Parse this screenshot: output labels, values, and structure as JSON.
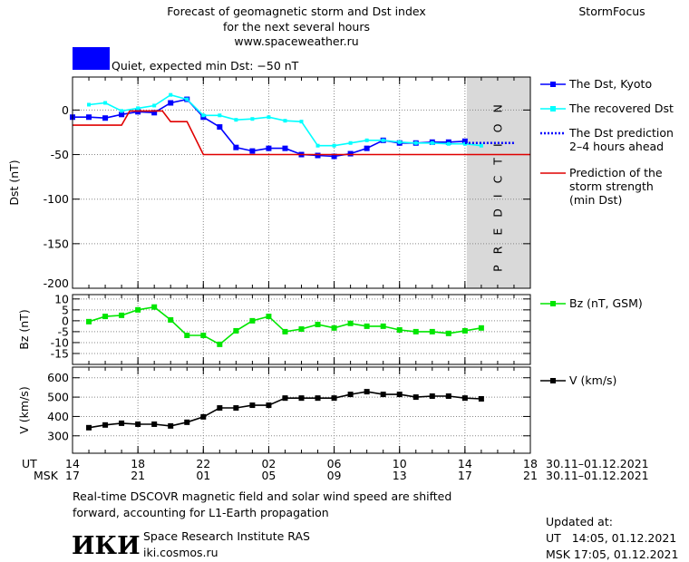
{
  "header": {
    "title_lines": [
      "Forecast of geomagnetic storm and Dst index",
      "for the next several hours",
      "www.spaceweather.ru"
    ],
    "brand": "StormFocus",
    "status": "Quiet, expected min Dst: −50 nT",
    "status_color": "#0000ff"
  },
  "time_axis": {
    "xlim": [
      0,
      28
    ],
    "ut_label": "UT",
    "msk_label": "MSK",
    "date_range": "30.11–01.12.2021",
    "ut_ticks": [
      {
        "value": 0,
        "label": "14"
      },
      {
        "value": 4,
        "label": "18"
      },
      {
        "value": 8,
        "label": "22"
      },
      {
        "value": 12,
        "label": "02"
      },
      {
        "value": 16,
        "label": "06"
      },
      {
        "value": 20,
        "label": "10"
      },
      {
        "value": 24,
        "label": "14"
      },
      {
        "value": 28,
        "label": "18"
      }
    ],
    "msk_ticks": [
      {
        "value": 0,
        "label": "17"
      },
      {
        "value": 4,
        "label": "21"
      },
      {
        "value": 8,
        "label": "01"
      },
      {
        "value": 12,
        "label": "05"
      },
      {
        "value": 16,
        "label": "09"
      },
      {
        "value": 20,
        "label": "13"
      },
      {
        "value": 24,
        "label": "17"
      },
      {
        "value": 28,
        "label": "21"
      }
    ]
  },
  "chart_data": [
    {
      "type": "line",
      "y_label": "Dst (nT)",
      "ylim": [
        -200,
        37
      ],
      "yticks": [
        0,
        -50,
        -100,
        -150,
        -200
      ],
      "grid": true,
      "shaded_region": [
        24,
        28
      ],
      "shaded_label": "PREDICTION",
      "series": [
        {
          "name": "The Dst, Kyoto",
          "color": "#0000ff",
          "marker": "square",
          "x": [
            0,
            1,
            2,
            3,
            4,
            5,
            6,
            7,
            8,
            9,
            10,
            11,
            12,
            13,
            14,
            15,
            16,
            17,
            18,
            19,
            20,
            21,
            22,
            23,
            24
          ],
          "values": [
            -8,
            -8,
            -9,
            -5,
            -2,
            -3,
            8,
            12,
            -8,
            -19,
            -42,
            -46,
            -43,
            -43,
            -50,
            -51,
            -52,
            -49,
            -43,
            -34,
            -37,
            -37,
            -36,
            -36,
            -35
          ]
        },
        {
          "name": "The recovered Dst",
          "color": "#00ffff",
          "marker": "square",
          "x": [
            1,
            2,
            3,
            4,
            5,
            6,
            7,
            8,
            9,
            10,
            11,
            12,
            13,
            14,
            15,
            16,
            17,
            18,
            19,
            20,
            21,
            22,
            23,
            24,
            25
          ],
          "values": [
            6,
            8,
            -1,
            2,
            5,
            17,
            12,
            -6,
            -6,
            -11,
            -10,
            -8,
            -12,
            -13,
            -40,
            -40,
            -37,
            -34,
            -34,
            -36,
            -37,
            -37,
            -38,
            -38,
            -40
          ]
        },
        {
          "name": "The Dst prediction\n2–4 hours ahead",
          "color": "#0000ff",
          "dash": "dotted",
          "x": [
            24,
            27
          ],
          "values": [
            -37,
            -37
          ]
        },
        {
          "name": "Prediction of the\nstorm strength\n(min Dst)",
          "color": "#e00000",
          "x": [
            0,
            3,
            3.5,
            5.5,
            6,
            7,
            8,
            28
          ],
          "values": [
            -17,
            -17,
            -1,
            -1,
            -13,
            -13,
            -50,
            -50
          ]
        }
      ]
    },
    {
      "type": "line",
      "y_label": "Bz (nT)",
      "ylim": [
        -20,
        12
      ],
      "yticks": [
        10,
        5,
        0,
        -5,
        -10,
        -15
      ],
      "grid": true,
      "series": [
        {
          "name": "Bz (nT, GSM)",
          "color": "#00e600",
          "marker": "square",
          "x": [
            1,
            2,
            3,
            4,
            5,
            6,
            7,
            8,
            9,
            10,
            11,
            12,
            13,
            14,
            15,
            16,
            17,
            18,
            19,
            20,
            21,
            22,
            23,
            24,
            25
          ],
          "values": [
            -0.4,
            2,
            2.5,
            5,
            6.3,
            0.4,
            -6.7,
            -6.7,
            -10.8,
            -4.6,
            0,
            2,
            -5,
            -3.8,
            -1.7,
            -3.3,
            -1.2,
            -2.5,
            -2.5,
            -4.2,
            -5,
            -5,
            -5.8,
            -4.6,
            -3.3
          ]
        }
      ]
    },
    {
      "type": "line",
      "y_label": "V (km/s)",
      "ylim": [
        210,
        655
      ],
      "yticks": [
        600,
        500,
        400,
        300
      ],
      "grid": true,
      "series": [
        {
          "name": "V (km/s)",
          "color": "#000000",
          "marker": "square",
          "x": [
            1,
            2,
            3,
            4,
            5,
            6,
            7,
            8,
            9,
            10,
            11,
            12,
            13,
            14,
            15,
            16,
            17,
            18,
            19,
            20,
            21,
            22,
            23,
            24,
            25
          ],
          "values": [
            342,
            356,
            365,
            360,
            360,
            351,
            370,
            398,
            444,
            444,
            458,
            458,
            495,
            495,
            495,
            495,
            514,
            528,
            514,
            514,
            500,
            505,
            505,
            495,
            491
          ]
        }
      ]
    }
  ],
  "footer": {
    "note_lines": [
      "Real-time DSCOVR magnetic field and solar wind speed are shifted",
      "forward, accounting for L1-Earth propagation"
    ],
    "logo": "ИКИ",
    "institute": "Space Research Institute RAS",
    "site": "iki.cosmos.ru",
    "updated_lines": [
      "Updated at:",
      "UT   14:05, 01.12.2021",
      "MSK 17:05, 01.12.2021"
    ]
  }
}
